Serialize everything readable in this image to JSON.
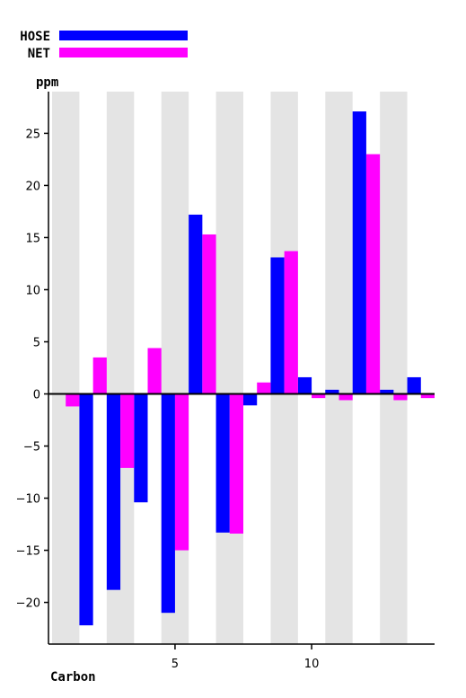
{
  "chart_data": {
    "type": "bar",
    "xlabel": "Carbon",
    "ylabel": "ppm",
    "ylim": [
      -24,
      29
    ],
    "xlim": [
      0.5,
      14.5
    ],
    "x": [
      1,
      2,
      3,
      4,
      5,
      6,
      7,
      8,
      9,
      10,
      11,
      12,
      13,
      14
    ],
    "xticks": [
      "5",
      "10"
    ],
    "xtick_values": [
      5,
      10
    ],
    "yticks": [
      -20,
      -15,
      -10,
      -5,
      0,
      5,
      10,
      15,
      20,
      25
    ],
    "ytick_labels": [
      "−20",
      "−15",
      "−10",
      "−5",
      "0",
      "5",
      "10",
      "15",
      "20",
      "25"
    ],
    "shaded_columns": [
      1,
      3,
      5,
      7,
      9,
      11,
      13
    ],
    "legend": "top-left",
    "series": [
      {
        "name": "HOSE",
        "color": "#0000ff",
        "values": [
          0,
          -22.2,
          -18.8,
          -10.4,
          -21.0,
          17.2,
          -13.3,
          -1.1,
          13.1,
          1.6,
          0.4,
          27.1,
          0.4,
          1.6
        ]
      },
      {
        "name": "NET",
        "color": "#ff00ff",
        "values": [
          -1.2,
          3.5,
          -7.1,
          4.4,
          -15.0,
          15.3,
          -13.4,
          1.1,
          13.7,
          -0.4,
          -0.6,
          23.0,
          -0.6,
          -0.4
        ]
      }
    ]
  }
}
